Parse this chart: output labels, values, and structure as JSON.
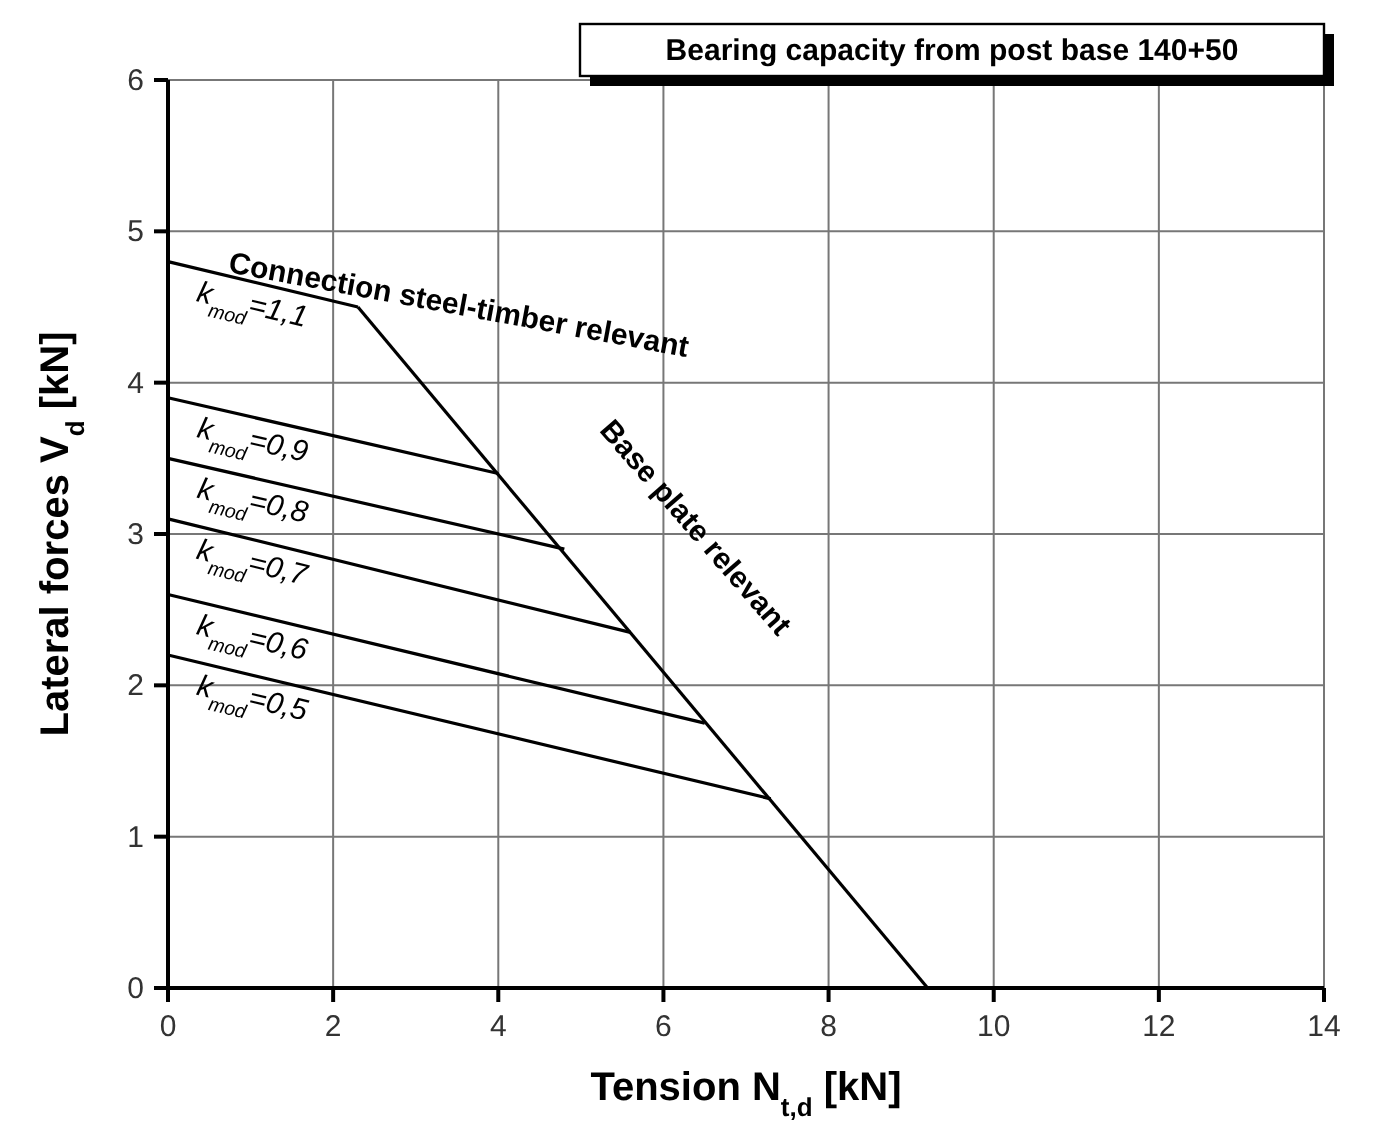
{
  "chart_data": {
    "type": "line",
    "title": "Bearing capacity from post base 140+50",
    "xlabel": "Tension N$_{t,d}$ [kN]",
    "ylabel": "Lateral forces V$_{d}$ [kN]",
    "xlim": [
      0,
      14
    ],
    "xticks": [
      0,
      2,
      4,
      6,
      8,
      10,
      12,
      14
    ],
    "ylim": [
      0,
      6
    ],
    "yticks": [
      0,
      1,
      2,
      3,
      4,
      5,
      6
    ],
    "grid": true,
    "marker": "none",
    "line_style": "solid",
    "series": [
      {
        "name": "k$_{mod}$=1,1",
        "color": "#000000",
        "x": [
          0,
          2.3
        ],
        "values": [
          4.8,
          4.5
        ]
      },
      {
        "name": "k$_{mod}$=0,9",
        "color": "#000000",
        "x": [
          0,
          4.0
        ],
        "values": [
          3.9,
          3.4
        ]
      },
      {
        "name": "k$_{mod}$=0,8",
        "color": "#000000",
        "x": [
          0,
          4.8
        ],
        "values": [
          3.5,
          2.9
        ]
      },
      {
        "name": "k$_{mod}$=0,7",
        "color": "#000000",
        "x": [
          0,
          5.6
        ],
        "values": [
          3.1,
          2.35
        ]
      },
      {
        "name": "k$_{mod}$=0,6",
        "color": "#000000",
        "x": [
          0,
          6.5
        ],
        "values": [
          2.6,
          1.75
        ]
      },
      {
        "name": "k$_{mod}$=0,5",
        "color": "#000000",
        "x": [
          0,
          7.3
        ],
        "values": [
          2.2,
          1.25
        ]
      },
      {
        "color": "#000000",
        "x": [
          2.3,
          9.2
        ],
        "values": [
          4.5,
          0
        ]
      }
    ],
    "annotations": [
      "Connection steel-timber relevant",
      "Base plate relevant"
    ]
  }
}
